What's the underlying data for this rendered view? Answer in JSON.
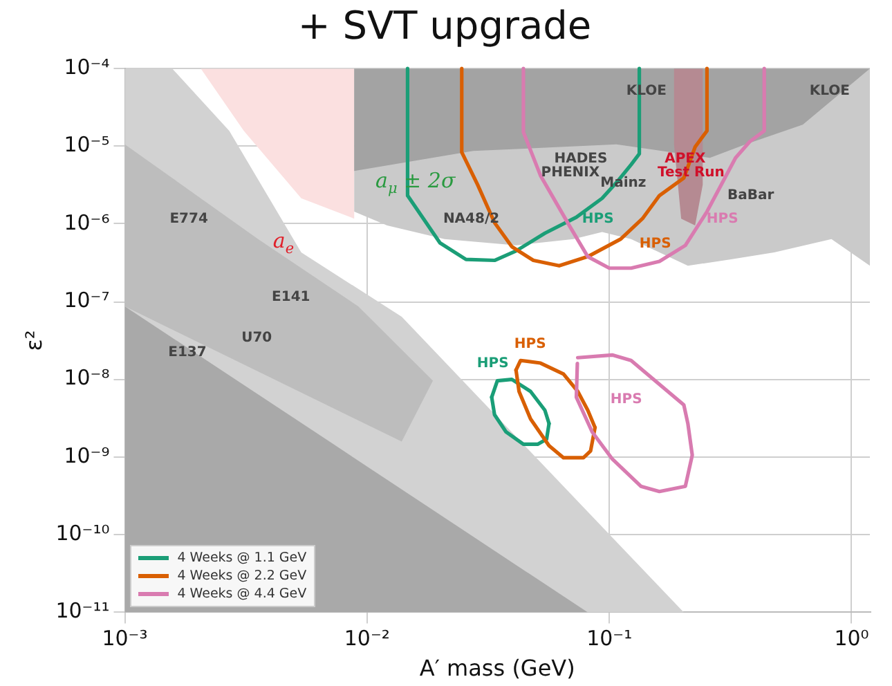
{
  "chart_data": {
    "type": "line",
    "title": "+ SVT upgrade",
    "xlabel": "A′ mass (GeV)",
    "ylabel": "ε²",
    "log": "xy",
    "grid": true,
    "legend": "bottom left",
    "marker": "none",
    "line_style": "solid",
    "xlim": [
      0.001,
      1.19
    ],
    "ylim": [
      1e-11,
      0.0001
    ],
    "xticks": [
      {
        "value": 0.001,
        "label": "10⁻³"
      },
      {
        "value": 0.01,
        "label": "10⁻²"
      },
      {
        "value": 0.1,
        "label": "10⁻¹"
      },
      {
        "value": 1,
        "label": "10⁰"
      }
    ],
    "yticks": [
      {
        "value": 1e-11,
        "label": "10⁻¹¹"
      },
      {
        "value": 1e-10,
        "label": "10⁻¹⁰"
      },
      {
        "value": 1e-09,
        "label": "10⁻⁹"
      },
      {
        "value": 1e-08,
        "label": "10⁻⁸"
      },
      {
        "value": 1e-07,
        "label": "10⁻⁷"
      },
      {
        "value": 1e-06,
        "label": "10⁻⁶"
      },
      {
        "value": 1e-05,
        "label": "10⁻⁵"
      },
      {
        "value": 0.0001,
        "label": "10⁻⁴"
      }
    ],
    "series": [
      {
        "type": "area",
        "color": "#fbe0e0",
        "x": [
          0.00206,
          0.00885,
          0.00885,
          0.00535,
          0.0031
        ],
        "values": [
          0.0001,
          0.0001,
          1.17e-06,
          2.14e-06,
          1.58e-05
        ]
      },
      {
        "type": "area",
        "color": "#d2d2d2",
        "x": [
          0.001,
          0.00157,
          0.0027,
          0.00535,
          0.0139,
          0.203,
          0.001
        ],
        "values": [
          0.0001,
          0.0001,
          1.58e-05,
          4.3e-07,
          6.4e-08,
          1e-11,
          1e-11
        ]
      },
      {
        "type": "area",
        "color": "#bdbdbd",
        "x": [
          0.001,
          0.00355,
          0.0092,
          0.0187,
          0.0139,
          0.001
        ],
        "values": [
          1.06e-05,
          6.4e-07,
          8.7e-08,
          9.6e-09,
          1.58e-09,
          8.7e-08
        ]
      },
      {
        "type": "area",
        "color": "#a9a9a9",
        "x": [
          0.001,
          0.007,
          0.0815,
          0.001
        ],
        "values": [
          8.7e-08,
          1.58e-09,
          1e-11,
          1e-11
        ]
      },
      {
        "type": "area",
        "color": "#cacaca",
        "x": [
          0.00885,
          0.00885,
          0.0121,
          0.0209,
          0.0412,
          0.0711,
          0.0934,
          0.123,
          0.211,
          0.318,
          0.479,
          0.826,
          1.19,
          1.19
        ],
        "values": [
          0.0001,
          1.44e-06,
          9.6e-07,
          6.4e-07,
          5.3e-07,
          6.4e-07,
          7.9e-07,
          6.4e-07,
          2.9e-07,
          3.5e-07,
          4.3e-07,
          6.4e-07,
          2.9e-07,
          0.0001
        ]
      },
      {
        "type": "area",
        "color": "#a3a3a3",
        "x": [
          0.00885,
          0.00885,
          0.0274,
          0.107,
          0.26,
          0.365,
          0.629,
          1.19
        ],
        "values": [
          0.0001,
          4.8e-06,
          8.7e-06,
          1.06e-05,
          7.1e-06,
          1.06e-05,
          1.9e-05,
          0.0001
        ]
      },
      {
        "type": "area",
        "color": "#b58a92",
        "x": [
          0.185,
          0.185,
          0.198,
          0.226,
          0.243,
          0.243
        ],
        "values": [
          0.0001,
          1.06e-05,
          1.17e-06,
          9.6e-07,
          3.2e-06,
          0.0001
        ]
      },
      {
        "name": "4 Weeks @ 1.1 GeV",
        "color": "#1b9e77",
        "x": [
          0.0147,
          0.0147,
          0.02,
          0.0256,
          0.0336,
          0.0412,
          0.0542,
          0.0731,
          0.0934,
          0.1086,
          0.123,
          0.133,
          0.133
        ],
        "values": [
          0.0001,
          2.32e-06,
          5.7e-07,
          3.5e-07,
          3.4e-07,
          4.5e-07,
          7.6e-07,
          1.22e-06,
          2.14e-06,
          3.6e-06,
          5.8e-06,
          8e-06,
          0.0001
        ]
      },
      {
        "name": "4 Weeks @ 2.2 GeV",
        "color": "#d95f02",
        "x": [
          0.0246,
          0.0246,
          0.0286,
          0.0336,
          0.0396,
          0.0486,
          0.0621,
          0.0815,
          0.1115,
          0.137,
          0.161,
          0.203,
          0.226,
          0.253,
          0.253
        ],
        "values": [
          0.0001,
          8.4e-06,
          3.2e-06,
          1.04e-06,
          5.1e-07,
          3.4e-07,
          2.9e-07,
          3.8e-07,
          6.4e-07,
          1.17e-06,
          2.32e-06,
          3.9e-06,
          9.8e-06,
          1.58e-05,
          0.0001
        ]
      },
      {
        "name": "4 Weeks @ 4.4 GeV",
        "color": "#d97bb0",
        "x": [
          0.0442,
          0.0442,
          0.052,
          0.0683,
          0.0815,
          0.1,
          0.123,
          0.161,
          0.206,
          0.253,
          0.332,
          0.38,
          0.436,
          0.436
        ],
        "values": [
          0.0001,
          1.52e-05,
          4.2e-06,
          9.6e-07,
          3.8e-07,
          2.7e-07,
          2.7e-07,
          3.3e-07,
          5.3e-07,
          1.44e-06,
          7.1e-06,
          1.15e-05,
          1.58e-05,
          0.0001
        ]
      },
      {
        "color": "#1a9e77",
        "x": [
          0.0327,
          0.0345,
          0.0396,
          0.0473,
          0.0542,
          0.0564
        ],
        "values": [
          5.9e-09,
          9.6e-09,
          1e-08,
          7e-09,
          4e-09,
          2.7e-09
        ]
      },
      {
        "color": "#1a9e78",
        "x": [
          0.0327,
          0.0336,
          0.0375,
          0.0442,
          0.0506,
          0.0551,
          0.0564
        ],
        "values": [
          5.9e-09,
          3.5e-09,
          2.1e-09,
          1.46e-09,
          1.46e-09,
          1.7e-09,
          2.7e-09
        ]
      },
      {
        "color": "#d85f02",
        "x": [
          0.0412,
          0.043,
          0.052,
          0.0647,
          0.0741,
          0.0815,
          0.0873
        ],
        "values": [
          1.32e-08,
          1.75e-08,
          1.62e-08,
          1.17e-08,
          7e-09,
          4e-09,
          2.4e-09
        ]
      },
      {
        "color": "#d85f03",
        "x": [
          0.0412,
          0.0424,
          0.0473,
          0.0564,
          0.0647,
          0.0782,
          0.0837,
          0.0873
        ],
        "values": [
          1.32e-08,
          7e-09,
          3.1e-09,
          1.4e-09,
          9.8e-10,
          9.8e-10,
          1.2e-09,
          2.4e-09
        ]
      },
      {
        "color": "#d87bb0",
        "x": [
          0.0741,
          0.1028,
          0.123,
          0.1545,
          0.203,
          0.211,
          0.22,
          0.206,
          0.161,
          0.135,
          0.103,
          0.085,
          0.0731,
          0.0738
        ],
        "values": [
          1.9e-08,
          2.06e-08,
          1.75e-08,
          9.6e-09,
          4.7e-09,
          2.7e-09,
          1.06e-09,
          4.2e-10,
          3.6e-10,
          4.2e-10,
          9.4e-10,
          2.1e-09,
          5.9e-09,
          1.6e-08
        ]
      }
    ],
    "annotations": [
      "KLOE",
      "KLOE",
      "HADES",
      "PHENIX",
      "Mainz",
      "APEX",
      "Test Run",
      "BaBar",
      "NA48/2",
      "HPS",
      "HPS",
      "HPS",
      "a$_{μ}$ ± 2σ",
      "a$_{e}$",
      "E774",
      "E141",
      "U70",
      "E137",
      "HPS",
      "HPS",
      "HPS"
    ]
  }
}
